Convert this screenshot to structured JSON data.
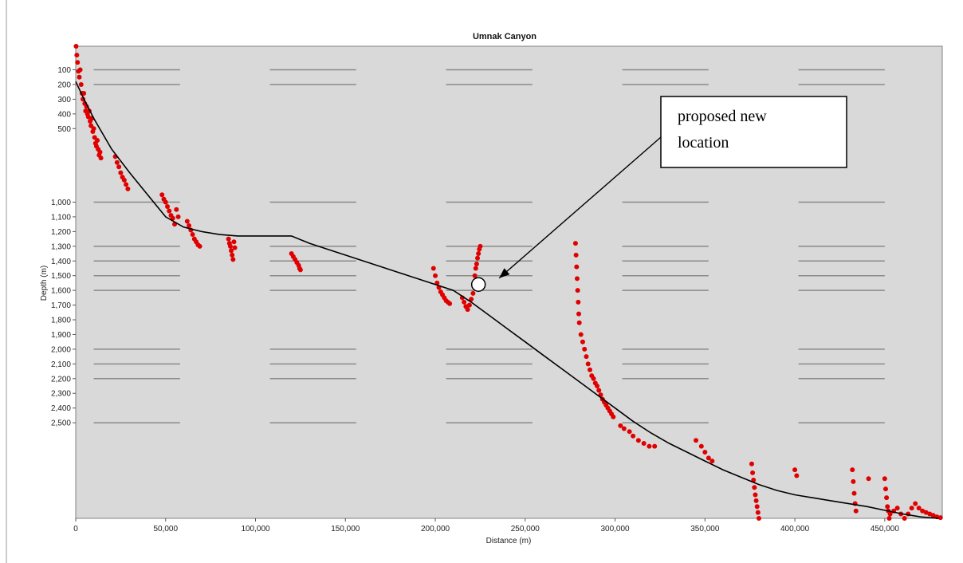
{
  "chart_data": {
    "type": "scatter",
    "title": "Umnak Canyon",
    "xlabel": "Distance (m)",
    "ylabel": "Depth (m)",
    "xlim": [
      0,
      482000
    ],
    "ylim": [
      3150,
      -60
    ],
    "grid": false,
    "x_ticks": [
      {
        "value": 0,
        "label": "0"
      },
      {
        "value": 50000,
        "label": "50,000"
      },
      {
        "value": 100000,
        "label": "100,000"
      },
      {
        "value": 150000,
        "label": "150,000"
      },
      {
        "value": 200000,
        "label": "200,000"
      },
      {
        "value": 250000,
        "label": "250,000"
      },
      {
        "value": 300000,
        "label": "300,000"
      },
      {
        "value": 350000,
        "label": "350,000"
      },
      {
        "value": 400000,
        "label": "400,000"
      },
      {
        "value": 450000,
        "label": "450,000"
      }
    ],
    "y_ticks": [
      {
        "value": 100,
        "label": "100"
      },
      {
        "value": 200,
        "label": "200"
      },
      {
        "value": 300,
        "label": "300"
      },
      {
        "value": 400,
        "label": "400"
      },
      {
        "value": 500,
        "label": "500"
      },
      {
        "value": 1000,
        "label": "1,000"
      },
      {
        "value": 1100,
        "label": "1,100"
      },
      {
        "value": 1200,
        "label": "1,200"
      },
      {
        "value": 1300,
        "label": "1,300"
      },
      {
        "value": 1400,
        "label": "1,400"
      },
      {
        "value": 1500,
        "label": "1,500"
      },
      {
        "value": 1600,
        "label": "1,600"
      },
      {
        "value": 1700,
        "label": "1,700"
      },
      {
        "value": 1800,
        "label": "1,800"
      },
      {
        "value": 1900,
        "label": "1,900"
      },
      {
        "value": 2000,
        "label": "2,000"
      },
      {
        "value": 2100,
        "label": "2,100"
      },
      {
        "value": 2200,
        "label": "2,200"
      },
      {
        "value": 2300,
        "label": "2,300"
      },
      {
        "value": 2400,
        "label": "2,400"
      },
      {
        "value": 2500,
        "label": "2,500"
      }
    ],
    "band_segments_x": [
      [
        10000,
        58000
      ],
      [
        108000,
        156000
      ],
      [
        206000,
        254000
      ],
      [
        304000,
        352000
      ],
      [
        402000,
        450000
      ]
    ],
    "band_levels": [
      100,
      200,
      1000,
      1300,
      1400,
      1500,
      1600,
      2000,
      2100,
      2200,
      2500
    ],
    "series": [
      {
        "color": "#e00000",
        "points": [
          [
            200,
            -60
          ],
          [
            600,
            0
          ],
          [
            1000,
            50
          ],
          [
            1500,
            110
          ],
          [
            2000,
            150
          ],
          [
            2500,
            100
          ],
          [
            3000,
            200
          ],
          [
            3500,
            260
          ],
          [
            4000,
            300
          ],
          [
            4500,
            260
          ],
          [
            5000,
            330
          ],
          [
            5500,
            380
          ],
          [
            6000,
            350
          ],
          [
            6500,
            400
          ],
          [
            7000,
            420
          ],
          [
            7500,
            380
          ],
          [
            8000,
            450
          ],
          [
            8500,
            480
          ],
          [
            9000,
            430
          ],
          [
            9500,
            520
          ],
          [
            10000,
            500
          ],
          [
            10500,
            560
          ],
          [
            11000,
            600
          ],
          [
            11500,
            620
          ],
          [
            12000,
            580
          ],
          [
            12500,
            640
          ],
          [
            13000,
            680
          ],
          [
            13500,
            660
          ],
          [
            14000,
            700
          ],
          [
            22000,
            690
          ],
          [
            23000,
            730
          ],
          [
            24000,
            760
          ],
          [
            25000,
            800
          ],
          [
            26000,
            830
          ],
          [
            27000,
            850
          ],
          [
            28000,
            880
          ],
          [
            29000,
            910
          ],
          [
            48000,
            950
          ],
          [
            49000,
            980
          ],
          [
            50000,
            1000
          ],
          [
            51000,
            1030
          ],
          [
            52000,
            1060
          ],
          [
            53000,
            1090
          ],
          [
            54000,
            1110
          ],
          [
            55000,
            1150
          ],
          [
            56000,
            1050
          ],
          [
            57000,
            1100
          ],
          [
            62000,
            1130
          ],
          [
            63000,
            1160
          ],
          [
            64000,
            1190
          ],
          [
            65000,
            1220
          ],
          [
            66000,
            1250
          ],
          [
            67000,
            1270
          ],
          [
            68000,
            1290
          ],
          [
            69000,
            1300
          ],
          [
            85000,
            1250
          ],
          [
            85500,
            1280
          ],
          [
            86000,
            1300
          ],
          [
            86500,
            1330
          ],
          [
            87000,
            1360
          ],
          [
            87500,
            1390
          ],
          [
            88000,
            1270
          ],
          [
            88500,
            1310
          ],
          [
            120000,
            1350
          ],
          [
            121000,
            1370
          ],
          [
            122000,
            1390
          ],
          [
            123000,
            1410
          ],
          [
            124000,
            1430
          ],
          [
            124500,
            1450
          ],
          [
            125000,
            1460
          ],
          [
            199000,
            1450
          ],
          [
            200000,
            1500
          ],
          [
            201000,
            1550
          ],
          [
            202000,
            1580
          ],
          [
            203000,
            1610
          ],
          [
            204000,
            1630
          ],
          [
            205000,
            1650
          ],
          [
            206000,
            1670
          ],
          [
            207000,
            1680
          ],
          [
            208000,
            1690
          ],
          [
            215000,
            1650
          ],
          [
            216000,
            1680
          ],
          [
            217000,
            1710
          ],
          [
            218000,
            1730
          ],
          [
            219000,
            1700
          ],
          [
            220000,
            1660
          ],
          [
            221000,
            1620
          ],
          [
            222000,
            1500
          ],
          [
            222500,
            1450
          ],
          [
            223000,
            1420
          ],
          [
            223500,
            1380
          ],
          [
            224000,
            1350
          ],
          [
            224500,
            1320
          ],
          [
            225000,
            1300
          ],
          [
            278000,
            1280
          ],
          [
            278300,
            1360
          ],
          [
            278600,
            1440
          ],
          [
            278900,
            1520
          ],
          [
            279200,
            1600
          ],
          [
            279500,
            1680
          ],
          [
            279800,
            1760
          ],
          [
            280100,
            1820
          ],
          [
            281000,
            1900
          ],
          [
            282000,
            1950
          ],
          [
            283000,
            2000
          ],
          [
            284000,
            2050
          ],
          [
            285000,
            2100
          ],
          [
            286000,
            2140
          ],
          [
            287000,
            2180
          ],
          [
            288000,
            2200
          ],
          [
            289000,
            2230
          ],
          [
            290000,
            2250
          ],
          [
            291000,
            2280
          ],
          [
            292000,
            2310
          ],
          [
            293000,
            2340
          ],
          [
            294000,
            2360
          ],
          [
            295000,
            2380
          ],
          [
            296000,
            2400
          ],
          [
            297000,
            2420
          ],
          [
            298000,
            2440
          ],
          [
            299000,
            2460
          ],
          [
            303000,
            2520
          ],
          [
            305000,
            2540
          ],
          [
            308000,
            2560
          ],
          [
            310000,
            2590
          ],
          [
            313000,
            2620
          ],
          [
            316000,
            2640
          ],
          [
            319000,
            2660
          ],
          [
            322000,
            2660
          ],
          [
            345000,
            2620
          ],
          [
            348000,
            2660
          ],
          [
            350000,
            2700
          ],
          [
            352000,
            2740
          ],
          [
            354000,
            2760
          ],
          [
            376000,
            2780
          ],
          [
            376500,
            2840
          ],
          [
            377000,
            2890
          ],
          [
            377500,
            2940
          ],
          [
            378000,
            2990
          ],
          [
            378500,
            3030
          ],
          [
            379000,
            3070
          ],
          [
            379500,
            3110
          ],
          [
            380000,
            3150
          ],
          [
            400000,
            2820
          ],
          [
            401000,
            2860
          ],
          [
            432000,
            2820
          ],
          [
            432500,
            2900
          ],
          [
            433000,
            2980
          ],
          [
            433500,
            3050
          ],
          [
            434000,
            3100
          ],
          [
            441000,
            2880
          ],
          [
            450000,
            2880
          ],
          [
            450500,
            2950
          ],
          [
            451000,
            3010
          ],
          [
            451500,
            3070
          ],
          [
            452000,
            3100
          ],
          [
            452500,
            3150
          ],
          [
            453000,
            3120
          ],
          [
            455000,
            3100
          ],
          [
            457000,
            3080
          ],
          [
            459000,
            3120
          ],
          [
            461000,
            3150
          ],
          [
            463000,
            3120
          ],
          [
            465000,
            3080
          ],
          [
            467000,
            3050
          ],
          [
            469000,
            3080
          ],
          [
            471000,
            3100
          ],
          [
            473000,
            3110
          ],
          [
            475000,
            3120
          ],
          [
            477000,
            3130
          ],
          [
            479000,
            3140
          ],
          [
            481000,
            3145
          ]
        ]
      },
      {
        "color": "#000000",
        "points": [
          [
            0,
            180
          ],
          [
            5000,
            310
          ],
          [
            10000,
            430
          ],
          [
            20000,
            640
          ],
          [
            30000,
            800
          ],
          [
            40000,
            950
          ],
          [
            50000,
            1100
          ],
          [
            60000,
            1170
          ],
          [
            70000,
            1200
          ],
          [
            80000,
            1220
          ],
          [
            90000,
            1230
          ],
          [
            100000,
            1230
          ],
          [
            110000,
            1230
          ],
          [
            120000,
            1230
          ],
          [
            130000,
            1280
          ],
          [
            140000,
            1320
          ],
          [
            150000,
            1360
          ],
          [
            160000,
            1400
          ],
          [
            170000,
            1440
          ],
          [
            180000,
            1480
          ],
          [
            190000,
            1520
          ],
          [
            200000,
            1560
          ],
          [
            210000,
            1600
          ],
          [
            220000,
            1680
          ],
          [
            230000,
            1770
          ],
          [
            240000,
            1860
          ],
          [
            250000,
            1950
          ],
          [
            260000,
            2040
          ],
          [
            270000,
            2130
          ],
          [
            280000,
            2220
          ],
          [
            290000,
            2310
          ],
          [
            300000,
            2400
          ],
          [
            310000,
            2490
          ],
          [
            320000,
            2570
          ],
          [
            330000,
            2640
          ],
          [
            340000,
            2700
          ],
          [
            350000,
            2760
          ],
          [
            360000,
            2820
          ],
          [
            370000,
            2870
          ],
          [
            380000,
            2920
          ],
          [
            390000,
            2960
          ],
          [
            400000,
            2990
          ],
          [
            410000,
            3010
          ],
          [
            420000,
            3030
          ],
          [
            430000,
            3050
          ],
          [
            440000,
            3070
          ],
          [
            450000,
            3095
          ],
          [
            460000,
            3120
          ],
          [
            470000,
            3140
          ],
          [
            480000,
            3150
          ]
        ]
      }
    ],
    "annotations": [
      {
        "text_lines": [
          "proposed new",
          "location"
        ],
        "target_x": 224000,
        "target_y": 1560,
        "marker": "open-circle"
      }
    ],
    "colors": {
      "plot_background": "#d9d9d9",
      "band": "#8a8a8a",
      "points": "#e00000",
      "trend": "#000000"
    }
  }
}
